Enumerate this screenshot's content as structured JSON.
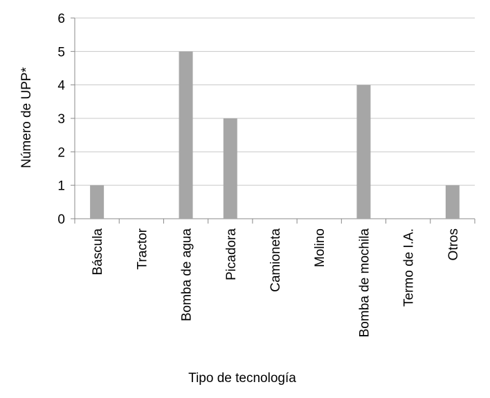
{
  "chart_data": {
    "type": "bar",
    "x_label": "Tipo de tecnología",
    "y_label": "Número de UPP*",
    "categories": [
      "Báscula",
      "Tractor",
      "Bomba de agua",
      "Picadora",
      "Camioneta",
      "Molino",
      "Bomba de mochila",
      "Termo de I.A.",
      "Otros"
    ],
    "values": [
      1,
      0,
      5,
      3,
      0,
      0,
      4,
      0,
      1
    ],
    "color": "#a6a6a6",
    "ylim": [
      0,
      6
    ],
    "yticks": [
      0,
      1,
      2,
      3,
      4,
      5,
      6
    ],
    "grid": true
  }
}
